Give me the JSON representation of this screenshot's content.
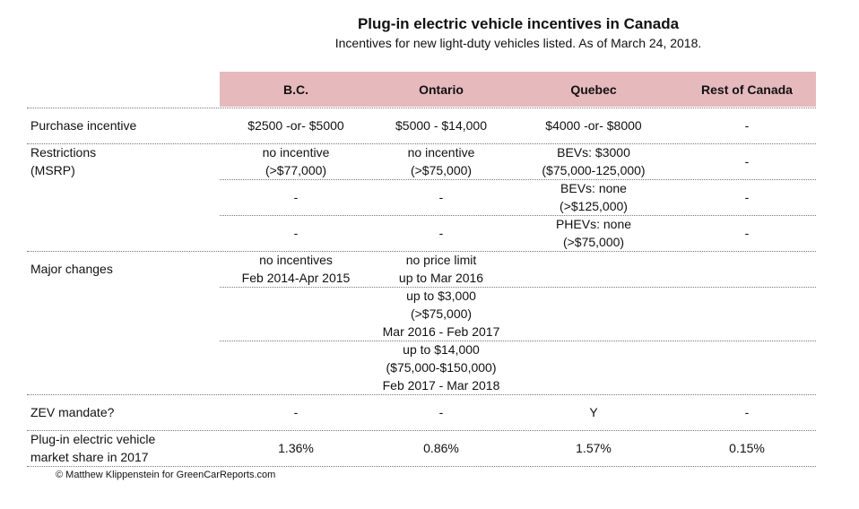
{
  "header": {
    "title": "Plug-in electric vehicle incentives in Canada",
    "subtitle": "Incentives for new light-duty vehicles listed. As of March 24, 2018."
  },
  "table": {
    "columns": [
      "B.C.",
      "Ontario",
      "Quebec",
      "Rest of Canada"
    ],
    "rows": [
      {
        "label": [
          "Purchase incentive"
        ],
        "subrows": [
          [
            [
              "$2500 -or- $5000"
            ],
            [
              "$5000 - $14,000"
            ],
            [
              "$4000 -or- $8000"
            ],
            [
              "-"
            ]
          ]
        ]
      },
      {
        "label": [
          "Restrictions",
          "(MSRP)"
        ],
        "subrows": [
          [
            [
              "no incentive",
              "(>$77,000)"
            ],
            [
              "no incentive",
              "(>$75,000)"
            ],
            [
              "BEVs: $3000",
              "($75,000-125,000)"
            ],
            [
              "-"
            ]
          ],
          [
            [
              "-"
            ],
            [
              "-"
            ],
            [
              "BEVs: none",
              "(>$125,000)"
            ],
            [
              "-"
            ]
          ],
          [
            [
              "-"
            ],
            [
              "-"
            ],
            [
              "PHEVs: none",
              "(>$75,000)"
            ],
            [
              "-"
            ]
          ]
        ]
      },
      {
        "label": [
          "Major changes"
        ],
        "subrows": [
          [
            [
              "no incentives",
              "Feb 2014-Apr 2015"
            ],
            [
              "no price limit",
              "up to Mar 2016"
            ],
            null,
            null
          ],
          [
            null,
            [
              "up to $3,000",
              "(>$75,000)",
              "Mar 2016 - Feb 2017"
            ],
            null,
            null
          ],
          [
            null,
            [
              "up to $14,000",
              "($75,000-$150,000)",
              "Feb 2017 - Mar 2018"
            ],
            null,
            null
          ]
        ]
      },
      {
        "label": [
          "ZEV mandate?"
        ],
        "subrows": [
          [
            [
              "-"
            ],
            [
              "-"
            ],
            [
              "Y"
            ],
            [
              "-"
            ]
          ]
        ]
      },
      {
        "label": [
          "Plug-in electric vehicle",
          "market share in 2017"
        ],
        "subrows": [
          [
            [
              "1.36%"
            ],
            [
              "0.86%"
            ],
            [
              "1.57%"
            ],
            [
              "0.15%"
            ]
          ]
        ]
      }
    ]
  },
  "footer": {
    "credit": "© Matthew Klippenstein for GreenCarReports.com"
  }
}
